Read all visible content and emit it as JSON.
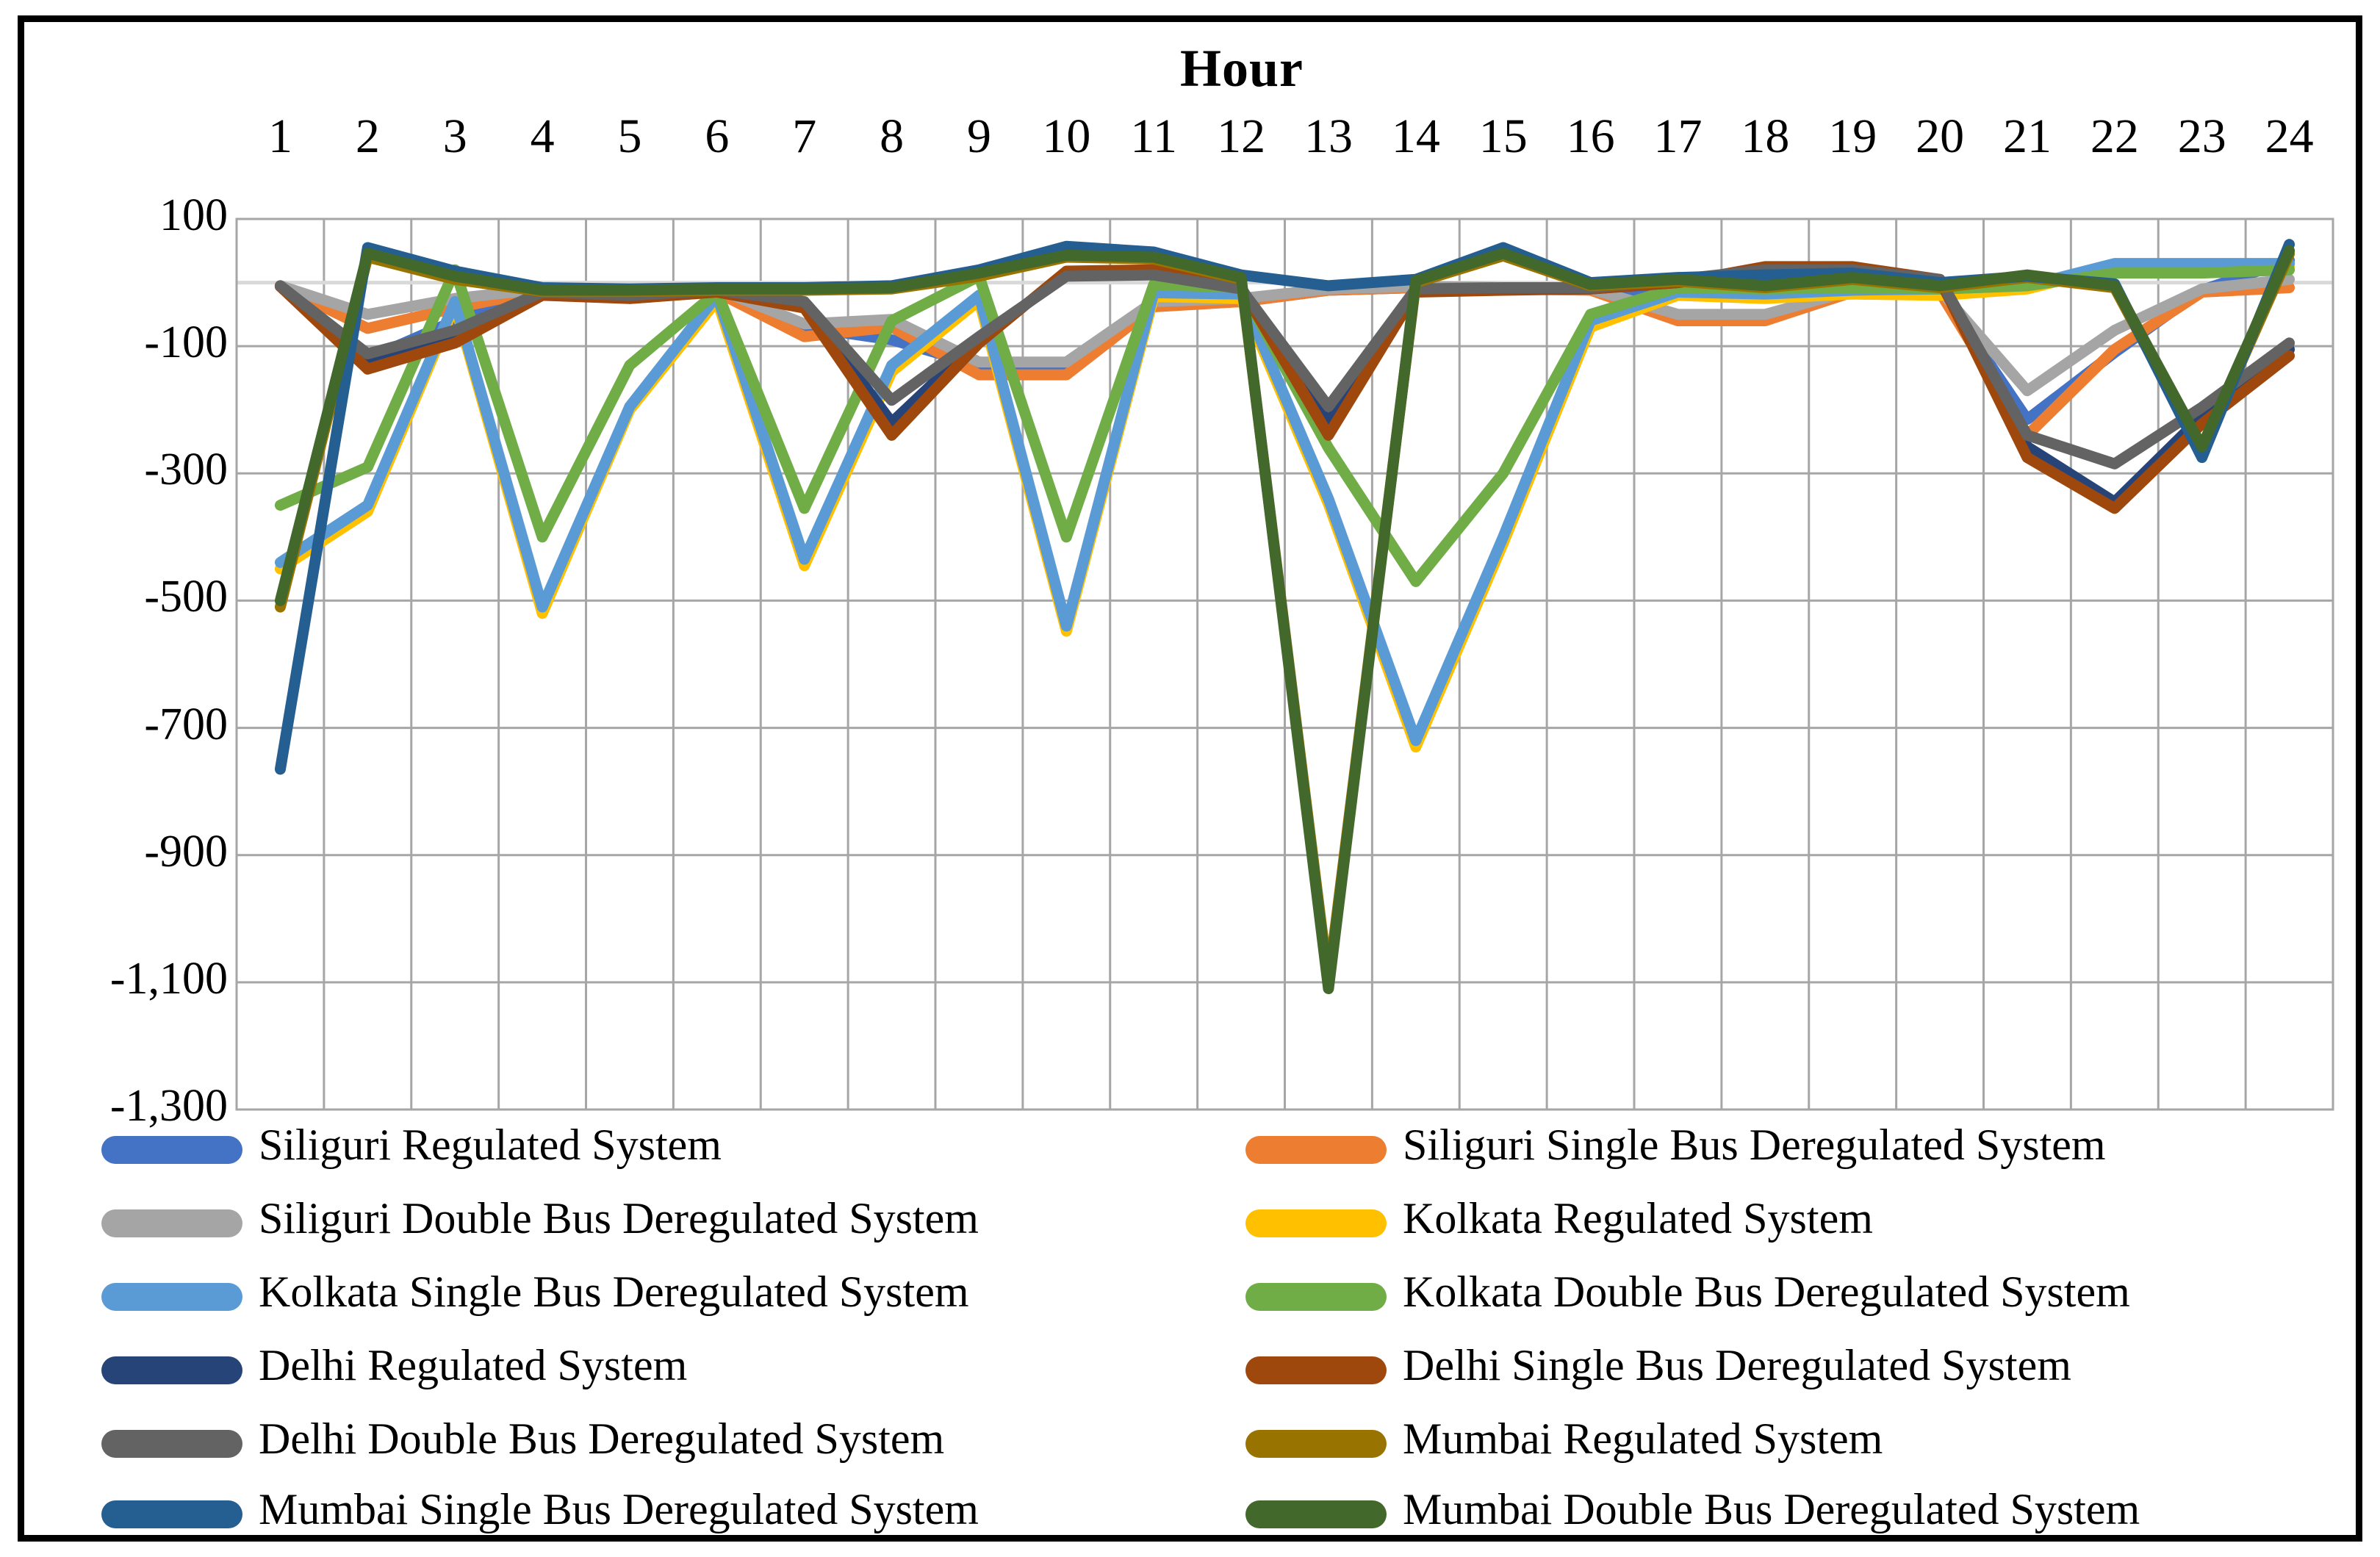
{
  "chart_data": {
    "type": "line",
    "title": "Hour",
    "x_axis": {
      "label": "Hour",
      "labels_position": "top",
      "ticks": [
        "1",
        "2",
        "3",
        "4",
        "5",
        "6",
        "7",
        "8",
        "9",
        "10",
        "11",
        "12",
        "13",
        "14",
        "15",
        "16",
        "17",
        "18",
        "19",
        "20",
        "21",
        "22",
        "23",
        "24"
      ]
    },
    "y_axis": {
      "min": -1300,
      "max": 100,
      "tick_step": 200,
      "tick_values": [
        100,
        -100,
        -300,
        -500,
        -700,
        -900,
        -1100,
        -1300
      ],
      "tick_labels": [
        "100",
        "-100",
        "-300",
        "-500",
        "-700",
        "-900",
        "-1,100",
        "-1,300"
      ]
    },
    "grid": true,
    "zero_line_color": "#D9D9D9",
    "gridline_color": "#A6A6A6",
    "legend_position": "bottom",
    "series": [
      {
        "name": "Siliguri Regulated System",
        "color": "#4472C4",
        "values": [
          -5,
          -120,
          -60,
          -15,
          -20,
          -12,
          -70,
          -90,
          -130,
          -130,
          -35,
          -30,
          -12,
          -8,
          -10,
          -10,
          -15,
          -12,
          -10,
          -12,
          -215,
          -110,
          -12,
          35
        ]
      },
      {
        "name": "Siliguri Single Bus Deregulated System",
        "color": "#ED7D31",
        "values": [
          -5,
          -72,
          -40,
          -12,
          -25,
          -15,
          -85,
          -70,
          -145,
          -145,
          -38,
          -30,
          -12,
          -8,
          -10,
          -12,
          -60,
          -60,
          -15,
          -15,
          -240,
          -105,
          -15,
          -8
        ]
      },
      {
        "name": "Siliguri Double Bus Deregulated System",
        "color": "#A5A5A5",
        "values": [
          -5,
          -50,
          -25,
          -10,
          -20,
          -10,
          -65,
          -58,
          -125,
          -125,
          -30,
          -25,
          -10,
          -6,
          -8,
          -10,
          -50,
          -50,
          -12,
          -12,
          -170,
          -75,
          -10,
          5
        ]
      },
      {
        "name": "Kolkata Regulated System",
        "color": "#FFC000",
        "values": [
          -450,
          -360,
          -35,
          -520,
          -200,
          -28,
          -445,
          -140,
          -28,
          -548,
          -22,
          -25,
          -348,
          -730,
          -410,
          -70,
          -20,
          -25,
          -18,
          -20,
          -10,
          25,
          25,
          25
        ]
      },
      {
        "name": "Kolkata Single Bus Deregulated System",
        "color": "#5B9BD5",
        "values": [
          -440,
          -350,
          -30,
          -510,
          -195,
          -20,
          -435,
          -130,
          -20,
          -540,
          -16,
          -18,
          -340,
          -720,
          -400,
          -60,
          -15,
          -18,
          -12,
          -10,
          -5,
          30,
          30,
          30
        ]
      },
      {
        "name": "Kolkata Double Bus Deregulated System",
        "color": "#70AD47",
        "values": [
          -350,
          -290,
          20,
          -400,
          -130,
          -15,
          -355,
          -60,
          10,
          -400,
          -3,
          -8,
          -260,
          -470,
          -300,
          -50,
          -8,
          -10,
          -8,
          -10,
          -5,
          15,
          15,
          20
        ]
      },
      {
        "name": "Delhi Regulated System",
        "color": "#264478",
        "values": [
          -6,
          -123,
          -85,
          -18,
          -22,
          -14,
          -35,
          -220,
          -90,
          14,
          16,
          -9,
          -220,
          -12,
          -10,
          -10,
          0,
          20,
          20,
          3,
          -258,
          -345,
          -210,
          -105
        ]
      },
      {
        "name": "Delhi Single Bus Deregulated System",
        "color": "#9E480E",
        "values": [
          -6,
          -136,
          -95,
          -20,
          -25,
          -15,
          -40,
          -240,
          -95,
          18,
          20,
          -8,
          -240,
          -15,
          -12,
          -10,
          0,
          25,
          25,
          5,
          -275,
          -355,
          -222,
          -115
        ]
      },
      {
        "name": "Delhi Double Bus Deregulated System",
        "color": "#636363",
        "values": [
          -5,
          -112,
          -75,
          -15,
          -20,
          -12,
          -30,
          -185,
          -85,
          10,
          12,
          -10,
          -195,
          -10,
          -8,
          -8,
          5,
          20,
          20,
          5,
          -240,
          -285,
          -196,
          -95
        ]
      },
      {
        "name": "Mumbai Regulated System",
        "color": "#997300",
        "values": [
          -510,
          40,
          5,
          -14,
          -14,
          -12,
          -12,
          -10,
          10,
          40,
          37,
          5,
          -1100,
          0,
          42,
          -5,
          2,
          -8,
          5,
          -8,
          8,
          -8,
          -265,
          45
        ]
      },
      {
        "name": "Mumbai Single Bus Deregulated System",
        "color": "#255E91",
        "values": [
          -765,
          55,
          18,
          -8,
          -10,
          -8,
          -8,
          -5,
          20,
          57,
          48,
          12,
          -5,
          5,
          55,
          0,
          8,
          12,
          15,
          0,
          10,
          -2,
          -275,
          60
        ]
      },
      {
        "name": "Mumbai Double Bus Deregulated System",
        "color": "#43682B",
        "values": [
          -500,
          46,
          10,
          -12,
          -12,
          -10,
          -10,
          -8,
          15,
          43,
          40,
          8,
          -1110,
          3,
          46,
          -3,
          5,
          -5,
          8,
          -5,
          12,
          -5,
          -258,
          50
        ]
      }
    ]
  }
}
